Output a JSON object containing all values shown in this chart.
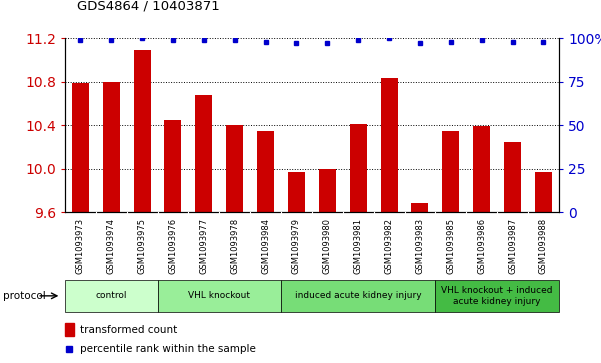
{
  "title": "GDS4864 / 10403871",
  "samples": [
    "GSM1093973",
    "GSM1093974",
    "GSM1093975",
    "GSM1093976",
    "GSM1093977",
    "GSM1093978",
    "GSM1093984",
    "GSM1093979",
    "GSM1093980",
    "GSM1093981",
    "GSM1093982",
    "GSM1093983",
    "GSM1093985",
    "GSM1093986",
    "GSM1093987",
    "GSM1093988"
  ],
  "bar_values": [
    10.79,
    10.8,
    11.09,
    10.45,
    10.68,
    10.4,
    10.35,
    9.97,
    10.0,
    10.41,
    10.83,
    9.69,
    10.35,
    10.39,
    10.25,
    9.97
  ],
  "dot_values": [
    99,
    99,
    100,
    99,
    99,
    99,
    98,
    97,
    97,
    99,
    100,
    97,
    98,
    99,
    98,
    98
  ],
  "ylim_left": [
    9.6,
    11.2
  ],
  "ylim_right": [
    0,
    100
  ],
  "yticks_left": [
    9.6,
    10.0,
    10.4,
    10.8,
    11.2
  ],
  "yticks_right": [
    0,
    25,
    50,
    75,
    100
  ],
  "bar_color": "#cc0000",
  "dot_color": "#0000cc",
  "groups": [
    {
      "label": "control",
      "start": 0,
      "end": 3,
      "color": "#ccffcc"
    },
    {
      "label": "VHL knockout",
      "start": 3,
      "end": 7,
      "color": "#99ee99"
    },
    {
      "label": "induced acute kidney injury",
      "start": 7,
      "end": 12,
      "color": "#77dd77"
    },
    {
      "label": "VHL knockout + induced\nacute kidney injury",
      "start": 12,
      "end": 16,
      "color": "#44bb44"
    }
  ],
  "protocol_label": "protocol",
  "legend_bar_label": "transformed count",
  "legend_dot_label": "percentile rank within the sample",
  "bg_color": "#ffffff",
  "xtick_bg": "#cccccc"
}
